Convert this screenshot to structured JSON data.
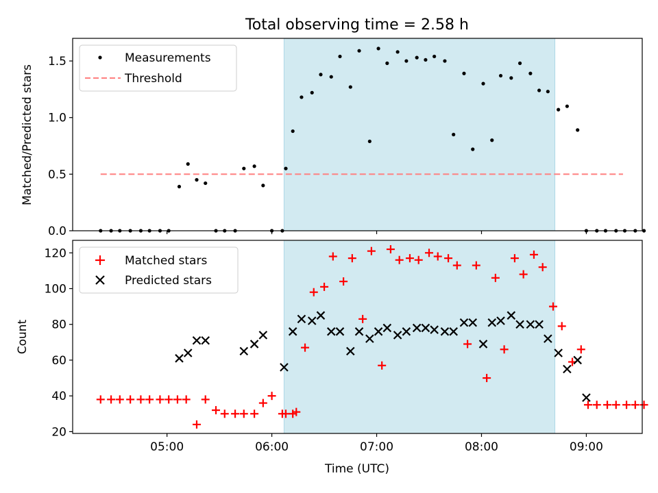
{
  "chart_data": [
    {
      "type": "scatter",
      "title": "Total observing time = 2.58 h",
      "xlabel": "",
      "ylabel": "Matched/Predicted stars",
      "xlim": [
        "04:06",
        "09:32"
      ],
      "ylim": [
        0,
        1.7
      ],
      "yticks": [
        0.0,
        0.5,
        1.0,
        1.5
      ],
      "ytick_labels": [
        "0.0",
        "0.5",
        "1.0",
        "1.5"
      ],
      "xticks": [
        "05:00",
        "06:00",
        "07:00",
        "08:00",
        "09:00"
      ],
      "xtick_labels": [],
      "grid": false,
      "legend": "top-left",
      "shaded_interval": {
        "start": "06:07",
        "end": "08:42",
        "color": "#add8e6"
      },
      "threshold": {
        "name": "Threshold",
        "value": 0.5,
        "x_start": "04:22",
        "x_end": "09:21",
        "color": "#ff7f7f",
        "style": "dashed"
      },
      "series": [
        {
          "name": "Measurements",
          "marker": "dot",
          "color": "#000000",
          "points": [
            [
              "04:22",
              0
            ],
            [
              "04:28",
              0
            ],
            [
              "04:33",
              0
            ],
            [
              "04:39",
              0
            ],
            [
              "04:45",
              0
            ],
            [
              "04:50",
              0
            ],
            [
              "04:56",
              0
            ],
            [
              "05:01",
              0
            ],
            [
              "05:07",
              0.39
            ],
            [
              "05:12",
              0.59
            ],
            [
              "05:17",
              0.45
            ],
            [
              "05:22",
              0.42
            ],
            [
              "05:28",
              0
            ],
            [
              "05:33",
              0
            ],
            [
              "05:39",
              0
            ],
            [
              "05:44",
              0.55
            ],
            [
              "05:50",
              0.57
            ],
            [
              "05:55",
              0.4
            ],
            [
              "06:00",
              0
            ],
            [
              "06:06",
              0
            ],
            [
              "06:08",
              0.55
            ],
            [
              "06:12",
              0.88
            ],
            [
              "06:17",
              1.18
            ],
            [
              "06:23",
              1.22
            ],
            [
              "06:28",
              1.38
            ],
            [
              "06:34",
              1.36
            ],
            [
              "06:39",
              1.54
            ],
            [
              "06:45",
              1.27
            ],
            [
              "06:50",
              1.59
            ],
            [
              "06:56",
              0.79
            ],
            [
              "07:01",
              1.61
            ],
            [
              "07:06",
              1.48
            ],
            [
              "07:12",
              1.58
            ],
            [
              "07:17",
              1.5
            ],
            [
              "07:23",
              1.53
            ],
            [
              "07:28",
              1.51
            ],
            [
              "07:33",
              1.54
            ],
            [
              "07:39",
              1.5
            ],
            [
              "07:44",
              0.85
            ],
            [
              "07:50",
              1.39
            ],
            [
              "07:55",
              0.72
            ],
            [
              "08:01",
              1.3
            ],
            [
              "08:06",
              0.8
            ],
            [
              "08:11",
              1.37
            ],
            [
              "08:17",
              1.35
            ],
            [
              "08:22",
              1.48
            ],
            [
              "08:28",
              1.39
            ],
            [
              "08:33",
              1.24
            ],
            [
              "08:38",
              1.23
            ],
            [
              "08:44",
              1.07
            ],
            [
              "08:49",
              1.1
            ],
            [
              "08:55",
              0.89
            ],
            [
              "09:00",
              0
            ],
            [
              "09:06",
              0
            ],
            [
              "09:11",
              0
            ],
            [
              "09:17",
              0
            ],
            [
              "09:22",
              0
            ],
            [
              "09:28",
              0
            ],
            [
              "09:33",
              0
            ]
          ]
        }
      ]
    },
    {
      "type": "scatter",
      "title": "",
      "xlabel": "Time (UTC)",
      "ylabel": "Count",
      "xlim": [
        "04:06",
        "09:32"
      ],
      "ylim": [
        19,
        127
      ],
      "yticks": [
        20,
        40,
        60,
        80,
        100,
        120
      ],
      "ytick_labels": [
        "20",
        "40",
        "60",
        "80",
        "100",
        "120"
      ],
      "xticks": [
        "05:00",
        "06:00",
        "07:00",
        "08:00",
        "09:00"
      ],
      "xtick_labels": [
        "05:00",
        "06:00",
        "07:00",
        "08:00",
        "09:00"
      ],
      "grid": false,
      "legend": "top-left",
      "shaded_interval": {
        "start": "06:07",
        "end": "08:42",
        "color": "#add8e6"
      },
      "series": [
        {
          "name": "Matched stars",
          "marker": "plus",
          "color": "#ff0000",
          "points": [
            [
              "04:22",
              38
            ],
            [
              "04:28",
              38
            ],
            [
              "04:33",
              38
            ],
            [
              "04:39",
              38
            ],
            [
              "04:45",
              38
            ],
            [
              "04:50",
              38
            ],
            [
              "04:56",
              38
            ],
            [
              "05:01",
              38
            ],
            [
              "05:06",
              38
            ],
            [
              "05:11",
              38
            ],
            [
              "05:17",
              24
            ],
            [
              "05:22",
              38
            ],
            [
              "05:28",
              32
            ],
            [
              "05:33",
              30
            ],
            [
              "05:39",
              30
            ],
            [
              "05:44",
              30
            ],
            [
              "05:50",
              30
            ],
            [
              "05:55",
              36
            ],
            [
              "06:00",
              40
            ],
            [
              "06:06",
              30
            ],
            [
              "06:08",
              30
            ],
            [
              "06:12",
              30
            ],
            [
              "06:14",
              31
            ],
            [
              "06:19",
              67
            ],
            [
              "06:24",
              98
            ],
            [
              "06:30",
              101
            ],
            [
              "06:35",
              118
            ],
            [
              "06:41",
              104
            ],
            [
              "06:46",
              117
            ],
            [
              "06:52",
              83
            ],
            [
              "06:57",
              121
            ],
            [
              "07:03",
              57
            ],
            [
              "07:08",
              122
            ],
            [
              "07:13",
              116
            ],
            [
              "07:19",
              117
            ],
            [
              "07:24",
              116
            ],
            [
              "07:30",
              120
            ],
            [
              "07:35",
              118
            ],
            [
              "07:41",
              117
            ],
            [
              "07:46",
              113
            ],
            [
              "07:52",
              69
            ],
            [
              "07:57",
              113
            ],
            [
              "08:03",
              50
            ],
            [
              "08:08",
              106
            ],
            [
              "08:13",
              66
            ],
            [
              "08:19",
              117
            ],
            [
              "08:24",
              108
            ],
            [
              "08:30",
              119
            ],
            [
              "08:35",
              112
            ],
            [
              "08:41",
              90
            ],
            [
              "08:46",
              79
            ],
            [
              "08:52",
              59
            ],
            [
              "08:57",
              66
            ],
            [
              "09:01",
              35
            ],
            [
              "09:06",
              35
            ],
            [
              "09:12",
              35
            ],
            [
              "09:17",
              35
            ],
            [
              "09:23",
              35
            ],
            [
              "09:28",
              35
            ],
            [
              "09:33",
              35
            ]
          ]
        },
        {
          "name": "Predicted stars",
          "marker": "x",
          "color": "#000000",
          "points": [
            [
              "05:07",
              61
            ],
            [
              "05:12",
              64
            ],
            [
              "05:17",
              71
            ],
            [
              "05:22",
              71
            ],
            [
              "05:44",
              65
            ],
            [
              "05:50",
              69
            ],
            [
              "05:55",
              74
            ],
            [
              "06:07",
              56
            ],
            [
              "06:12",
              76
            ],
            [
              "06:17",
              83
            ],
            [
              "06:23",
              82
            ],
            [
              "06:28",
              85
            ],
            [
              "06:34",
              76
            ],
            [
              "06:39",
              76
            ],
            [
              "06:45",
              65
            ],
            [
              "06:50",
              76
            ],
            [
              "06:56",
              72
            ],
            [
              "07:01",
              76
            ],
            [
              "07:06",
              78
            ],
            [
              "07:12",
              74
            ],
            [
              "07:17",
              76
            ],
            [
              "07:23",
              78
            ],
            [
              "07:28",
              78
            ],
            [
              "07:33",
              77
            ],
            [
              "07:39",
              76
            ],
            [
              "07:44",
              76
            ],
            [
              "07:50",
              81
            ],
            [
              "07:55",
              81
            ],
            [
              "08:01",
              69
            ],
            [
              "08:06",
              81
            ],
            [
              "08:11",
              82
            ],
            [
              "08:17",
              85
            ],
            [
              "08:22",
              80
            ],
            [
              "08:28",
              80
            ],
            [
              "08:33",
              80
            ],
            [
              "08:38",
              72
            ],
            [
              "08:44",
              64
            ],
            [
              "08:49",
              55
            ],
            [
              "08:55",
              60
            ],
            [
              "09:00",
              39
            ]
          ]
        }
      ]
    }
  ]
}
